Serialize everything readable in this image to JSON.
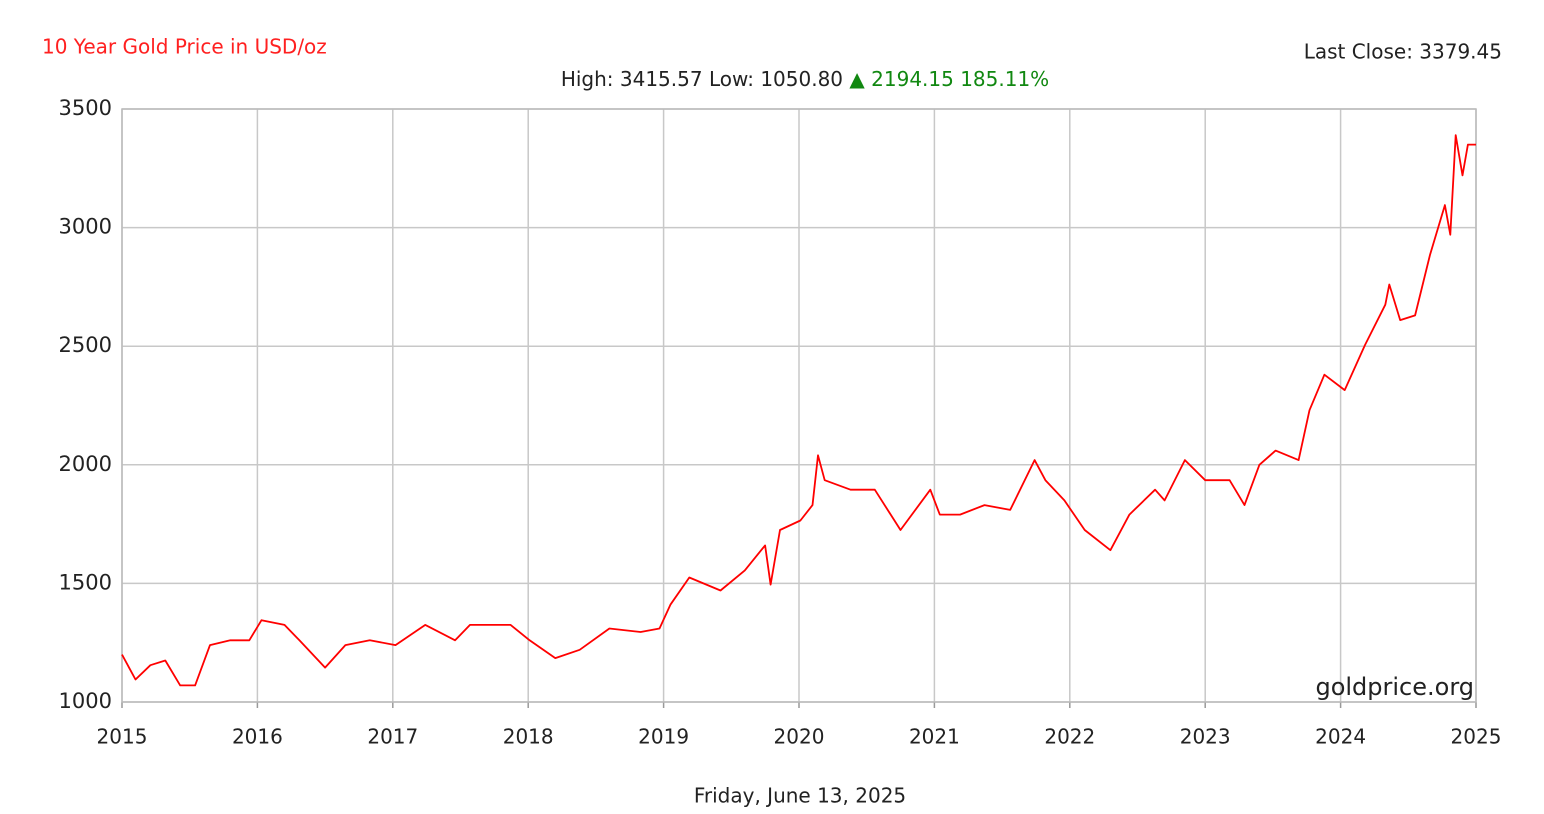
{
  "chart_data": {
    "type": "line",
    "title": "10 Year Gold Price in USD/oz",
    "last_close": "Last Close: 3379.45",
    "high_low": "High: 3415.57 Low: 1050.80",
    "change_symbol": "▲",
    "change": "2194.15 185.11%",
    "watermark": "goldprice.org",
    "xlabel": "Friday, June 13, 2025",
    "color": "#ff0000",
    "grid": true,
    "xlim": [
      2015,
      2025
    ],
    "xticks": [
      2015,
      2016,
      2017,
      2018,
      2019,
      2020,
      2021,
      2022,
      2023,
      2024,
      2025
    ],
    "ylim": [
      1000,
      3500
    ],
    "yticks": [
      1000,
      1500,
      2000,
      2500,
      3000,
      3500
    ],
    "x": [
      2015.0,
      2015.1,
      2015.21,
      2015.32,
      2015.43,
      2015.54,
      2015.65,
      2015.8,
      2015.94,
      2016.03,
      2016.2,
      2016.31,
      2016.5,
      2016.65,
      2016.83,
      2017.02,
      2017.24,
      2017.46,
      2017.57,
      2017.87,
      2018.01,
      2018.2,
      2018.38,
      2018.6,
      2018.83,
      2018.97,
      2019.05,
      2019.19,
      2019.42,
      2019.6,
      2019.75,
      2019.79,
      2019.86,
      2020.01,
      2020.1,
      2020.14,
      2020.19,
      2020.38,
      2020.56,
      2020.75,
      2020.97,
      2021.04,
      2021.19,
      2021.37,
      2021.56,
      2021.74,
      2021.82,
      2021.96,
      2022.11,
      2022.3,
      2022.44,
      2022.63,
      2022.7,
      2022.85,
      2023.0,
      2023.18,
      2023.29,
      2023.4,
      2023.52,
      2023.69,
      2023.77,
      2023.88,
      2024.03,
      2024.18,
      2024.33,
      2024.36,
      2024.44,
      2024.55,
      2024.66,
      2024.77,
      2024.81,
      2024.85,
      2024.9,
      2024.94,
      2025.0
    ],
    "values": [
      1200,
      1095,
      1155,
      1175,
      1070,
      1070,
      1240,
      1260,
      1260,
      1345,
      1325,
      1260,
      1145,
      1240,
      1260,
      1240,
      1325,
      1260,
      1325,
      1325,
      1260,
      1185,
      1220,
      1310,
      1295,
      1310,
      1410,
      1525,
      1470,
      1555,
      1660,
      1495,
      1725,
      1765,
      1830,
      2040,
      1935,
      1895,
      1895,
      1725,
      1895,
      1790,
      1790,
      1830,
      1810,
      2020,
      1935,
      1850,
      1725,
      1640,
      1790,
      1895,
      1850,
      2020,
      1935,
      1935,
      1830,
      2000,
      2060,
      2020,
      2230,
      2380,
      2315,
      2505,
      2675,
      2760,
      2610,
      2630,
      2885,
      3095,
      2970,
      3390,
      3220,
      3350,
      3350
    ]
  }
}
